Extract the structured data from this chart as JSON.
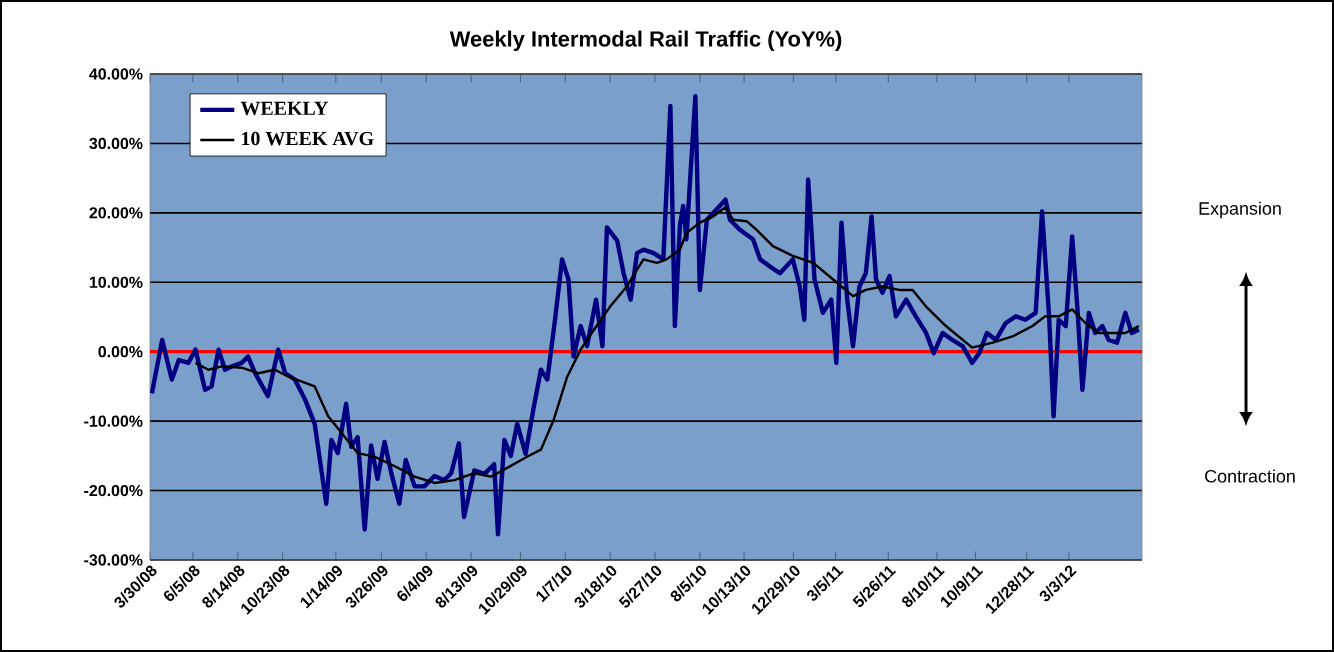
{
  "chart_data": {
    "type": "line",
    "title": "Weekly Intermodal Rail Traffic (YoY%)",
    "xlim": [
      "2008-03-30",
      "2012-06-25"
    ],
    "xticks": [
      {
        "value": "2008-03-30",
        "label": "3/30/08"
      },
      {
        "value": "2008-06-05",
        "label": "6/5/08"
      },
      {
        "value": "2008-08-14",
        "label": "8/14/08"
      },
      {
        "value": "2008-10-23",
        "label": "10/23/08"
      },
      {
        "value": "2009-01-14",
        "label": "1/14/09"
      },
      {
        "value": "2009-03-26",
        "label": "3/26/09"
      },
      {
        "value": "2009-06-04",
        "label": "6/4/09"
      },
      {
        "value": "2009-08-13",
        "label": "8/13/09"
      },
      {
        "value": "2009-10-29",
        "label": "10/29/09"
      },
      {
        "value": "2010-01-07",
        "label": "1/7/10"
      },
      {
        "value": "2010-03-18",
        "label": "3/18/10"
      },
      {
        "value": "2010-05-27",
        "label": "5/27/10"
      },
      {
        "value": "2010-08-05",
        "label": "8/5/10"
      },
      {
        "value": "2010-10-13",
        "label": "10/13/10"
      },
      {
        "value": "2010-12-29",
        "label": "12/29/10"
      },
      {
        "value": "2011-03-05",
        "label": "3/5/11"
      },
      {
        "value": "2011-05-26",
        "label": "5/26/11"
      },
      {
        "value": "2011-08-10",
        "label": "8/10/11"
      },
      {
        "value": "2011-10-09",
        "label": "10/9/11"
      },
      {
        "value": "2011-12-28",
        "label": "12/28/11"
      },
      {
        "value": "2012-03-03",
        "label": "3/3/12"
      }
    ],
    "ylim": [
      -30,
      40
    ],
    "yticks": [
      {
        "value": -30,
        "label": "-30.00%"
      },
      {
        "value": -20,
        "label": "-20.00%"
      },
      {
        "value": -10,
        "label": "-10.00%"
      },
      {
        "value": 0,
        "label": "0.00%"
      },
      {
        "value": 10,
        "label": "10.00%"
      },
      {
        "value": 20,
        "label": "20.00%"
      },
      {
        "value": 30,
        "label": "30.00%"
      },
      {
        "value": 40,
        "label": "40.00%"
      }
    ],
    "grid": "y",
    "legend": "top left",
    "marker": "none",
    "line_style": "solid",
    "ref_lines": [
      {
        "axis": "y",
        "value": 0,
        "color": "#ff0000"
      }
    ],
    "annotations": [
      "Expansion",
      "Contraction"
    ],
    "series": [
      {
        "name": "WEEKLY",
        "color": "#000080",
        "x": [
          "2008-04-02",
          "2008-04-18",
          "2008-05-03",
          "2008-05-14",
          "2008-05-29",
          "2008-06-09",
          "2008-06-24",
          "2008-07-04",
          "2008-07-15",
          "2008-07-25",
          "2008-08-05",
          "2008-08-20",
          "2008-08-30",
          "2008-09-10",
          "2008-09-30",
          "2008-10-16",
          "2008-10-27",
          "2008-11-11",
          "2008-11-27",
          "2008-12-12",
          "2008-12-30",
          "2009-01-07",
          "2009-01-17",
          "2009-01-30",
          "2009-02-07",
          "2009-02-17",
          "2009-02-28",
          "2009-03-10",
          "2009-03-20",
          "2009-03-31",
          "2009-04-10",
          "2009-04-23",
          "2009-05-03",
          "2009-05-17",
          "2009-06-01",
          "2009-06-17",
          "2009-07-02",
          "2009-07-13",
          "2009-07-25",
          "2009-08-02",
          "2009-08-18",
          "2009-09-03",
          "2009-09-18",
          "2009-09-24",
          "2009-10-04",
          "2009-10-14",
          "2009-10-24",
          "2009-11-06",
          "2009-11-19",
          "2009-11-30",
          "2009-12-10",
          "2009-12-22",
          "2010-01-02",
          "2010-01-12",
          "2010-01-20",
          "2010-01-31",
          "2010-02-10",
          "2010-02-24",
          "2010-03-06",
          "2010-03-13",
          "2010-03-29",
          "2010-04-08",
          "2010-04-19",
          "2010-04-29",
          "2010-05-09",
          "2010-05-25",
          "2010-06-09",
          "2010-06-20",
          "2010-06-27",
          "2010-07-05",
          "2010-07-10",
          "2010-07-15",
          "2010-07-29",
          "2010-08-05",
          "2010-08-16",
          "2010-08-31",
          "2010-09-14",
          "2010-09-21",
          "2010-10-06",
          "2010-10-27",
          "2010-11-07",
          "2010-11-22",
          "2010-12-08",
          "2010-12-28",
          "2011-01-08",
          "2011-01-15",
          "2011-01-21",
          "2011-01-31",
          "2011-02-13",
          "2011-02-26",
          "2011-03-06",
          "2011-03-14",
          "2011-03-23",
          "2011-04-01",
          "2011-04-11",
          "2011-04-21",
          "2011-04-30",
          "2011-05-07",
          "2011-05-17",
          "2011-05-28",
          "2011-06-07",
          "2011-06-23",
          "2011-07-08",
          "2011-07-24",
          "2011-08-05",
          "2011-08-19",
          "2011-09-03",
          "2011-09-19",
          "2011-10-04",
          "2011-10-15",
          "2011-10-27",
          "2011-11-10",
          "2011-11-25",
          "2011-12-11",
          "2011-12-26",
          "2012-01-11",
          "2012-01-21",
          "2012-02-01",
          "2012-02-08",
          "2012-02-16",
          "2012-02-27",
          "2012-03-08",
          "2012-03-16",
          "2012-03-24",
          "2012-04-03",
          "2012-04-13",
          "2012-04-24",
          "2012-05-04",
          "2012-05-17",
          "2012-05-30",
          "2012-06-09",
          "2012-06-20"
        ],
        "values": [
          -6.0,
          1.7,
          -4.0,
          -1.2,
          -1.6,
          0.3,
          -5.5,
          -5.0,
          0.3,
          -2.6,
          -2.1,
          -1.6,
          -0.7,
          -3.1,
          -6.4,
          0.3,
          -3.1,
          -4.0,
          -6.9,
          -10.4,
          -21.9,
          -12.7,
          -14.6,
          -7.5,
          -13.7,
          -12.3,
          -25.6,
          -13.5,
          -18.3,
          -13.0,
          -17.3,
          -21.9,
          -15.6,
          -19.4,
          -19.4,
          -17.9,
          -18.5,
          -17.5,
          -13.2,
          -23.8,
          -17.1,
          -17.6,
          -16.2,
          -26.3,
          -12.7,
          -15.0,
          -10.4,
          -14.7,
          -7.9,
          -2.6,
          -4.0,
          4.6,
          13.3,
          10.4,
          -0.7,
          3.7,
          0.8,
          7.5,
          0.8,
          17.9,
          16.0,
          11.3,
          7.5,
          14.2,
          14.7,
          14.2,
          13.3,
          35.4,
          3.7,
          18.3,
          21.0,
          16.2,
          36.8,
          8.9,
          19.0,
          20.5,
          21.9,
          19.0,
          17.6,
          16.2,
          13.3,
          12.3,
          11.3,
          13.3,
          9.4,
          4.6,
          24.8,
          10.4,
          5.6,
          7.5,
          -1.6,
          18.6,
          7.5,
          0.8,
          9.4,
          11.3,
          19.5,
          10.4,
          8.5,
          10.9,
          5.1,
          7.5,
          5.1,
          2.7,
          -0.2,
          2.7,
          1.7,
          0.8,
          -1.6,
          -0.2,
          2.7,
          1.7,
          4.1,
          5.1,
          4.6,
          5.6,
          20.2,
          5.1,
          -9.3,
          4.6,
          3.7,
          16.6,
          6.5,
          -5.5,
          5.6,
          2.7,
          3.7,
          1.7,
          1.3,
          5.6,
          2.7,
          3.2
        ]
      },
      {
        "name": "10 WEEK AVG",
        "color": "#000000",
        "x": [
          "2008-06-09",
          "2008-06-29",
          "2008-07-20",
          "2008-08-20",
          "2008-09-15",
          "2008-10-11",
          "2008-11-01",
          "2008-12-12",
          "2009-01-02",
          "2009-01-23",
          "2009-02-17",
          "2009-03-15",
          "2009-04-16",
          "2009-05-17",
          "2009-06-17",
          "2009-07-18",
          "2009-08-18",
          "2009-09-13",
          "2009-10-09",
          "2009-11-09",
          "2009-11-30",
          "2009-12-20",
          "2010-01-10",
          "2010-01-31",
          "2010-02-21",
          "2010-03-18",
          "2010-04-13",
          "2010-05-09",
          "2010-05-30",
          "2010-06-14",
          "2010-07-05",
          "2010-07-15",
          "2010-08-05",
          "2010-08-26",
          "2010-09-14",
          "2010-09-26",
          "2010-10-17",
          "2010-11-01",
          "2010-11-27",
          "2010-12-28",
          "2011-01-29",
          "2011-03-01",
          "2011-04-01",
          "2011-04-21",
          "2011-05-17",
          "2011-06-12",
          "2011-07-03",
          "2011-07-24",
          "2011-08-24",
          "2011-10-04",
          "2011-11-05",
          "2011-12-06",
          "2012-01-06",
          "2012-01-26",
          "2012-02-16",
          "2012-03-08",
          "2012-03-29",
          "2012-04-18",
          "2012-05-09",
          "2012-05-30",
          "2012-06-20"
        ],
        "values": [
          -1.6,
          -2.6,
          -2.1,
          -2.3,
          -3.1,
          -2.6,
          -3.6,
          -5.0,
          -9.3,
          -11.7,
          -14.6,
          -15.1,
          -16.5,
          -18.0,
          -18.9,
          -18.5,
          -17.5,
          -18.0,
          -16.7,
          -15.1,
          -14.1,
          -9.8,
          -3.6,
          0.3,
          3.2,
          6.5,
          9.4,
          13.3,
          12.8,
          13.3,
          14.7,
          17.1,
          18.6,
          19.5,
          20.8,
          19.0,
          18.8,
          17.6,
          15.2,
          13.8,
          12.8,
          10.4,
          8.0,
          8.9,
          9.4,
          8.9,
          8.9,
          6.5,
          3.7,
          0.6,
          1.3,
          2.2,
          3.7,
          5.1,
          5.1,
          6.1,
          4.1,
          2.7,
          2.7,
          2.7,
          3.7
        ]
      }
    ]
  }
}
